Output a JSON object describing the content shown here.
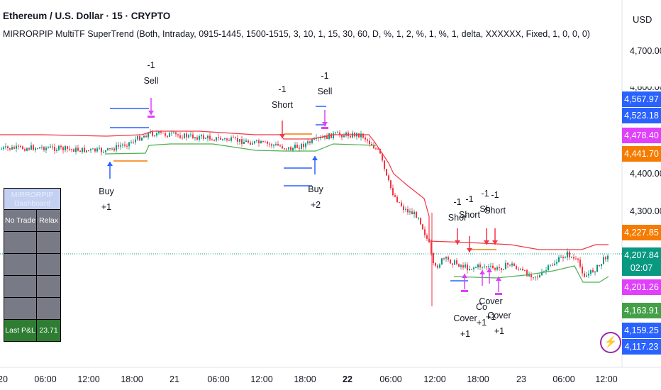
{
  "header": {
    "title": "Ethereum / U.S. Dollar · 15 · CRYPTO",
    "indicator": "MIRRORPIP MultiTF SuperTrend (Both, Intraday, 0915-1445, 1500-1515, 3, 10, 1, 15, 30, 60, D, %, 1, 2, %, 1, %, 1, delta, XXXXXX, Fixed, 1, 0, 0, 0)"
  },
  "price_axis": {
    "currency": "USD",
    "ticks": [
      "4,700.00",
      "4,600.00",
      "4,400.00",
      "4,300.00"
    ],
    "tags": [
      {
        "text": "4,567.97",
        "color": "#2962ff"
      },
      {
        "text": "4,523.18",
        "color": "#2962ff"
      },
      {
        "text": "4,478.40",
        "color": "#e040fb"
      },
      {
        "text": "4,441.70",
        "color": "#f57c00"
      },
      {
        "text": "4,227.85",
        "color": "#f57c00"
      },
      {
        "text": "4,207.84",
        "sub": "02:07",
        "color": "#089981"
      },
      {
        "text": "4,201.26",
        "color": "#e040fb"
      },
      {
        "text": "4,163.91",
        "color": "#43a047"
      },
      {
        "text": "4,159.25",
        "color": "#2962ff"
      },
      {
        "text": "4,117.23",
        "color": "#2962ff"
      }
    ]
  },
  "time_axis": [
    "20",
    "06:00",
    "12:00",
    "18:00",
    "21",
    "06:00",
    "12:00",
    "18:00",
    "22",
    "06:00",
    "12:00",
    "18:00",
    "23",
    "06:00",
    "12:00"
  ],
  "dashboard": {
    "title": "MIRRORPIP Dashboard",
    "row1": [
      "No Trade",
      "Relax"
    ],
    "pl_label": "Last P&L",
    "pl_value": "23.71"
  },
  "annotations": {
    "buy1": [
      "Buy",
      "+1"
    ],
    "sell1": [
      "-1",
      "Sell"
    ],
    "short1": [
      "-1",
      "Short"
    ],
    "sell2": [
      "-1",
      "Sell"
    ],
    "buy2": [
      "Buy",
      "+2"
    ],
    "short2": [
      "-1",
      "Shor"
    ],
    "short3": [
      "-1",
      "Short"
    ],
    "short4": [
      "-1",
      "Sh"
    ],
    "short5": [
      "-1",
      "Short"
    ],
    "cover1": [
      "Cover",
      "+1"
    ],
    "cover2": [
      "Co",
      "+1"
    ],
    "cover3": [
      "Cover",
      "+1"
    ],
    "cover4": [
      "Cover",
      "+1"
    ]
  },
  "colors": {
    "bull": "#089981",
    "bear": "#f23645",
    "supertrend_up": "#4caf50",
    "supertrend_down": "#f23645",
    "buy": "#2962ff",
    "sell": "#e040fb",
    "target": "#f57c00"
  },
  "logo": "tradingview-icon"
}
